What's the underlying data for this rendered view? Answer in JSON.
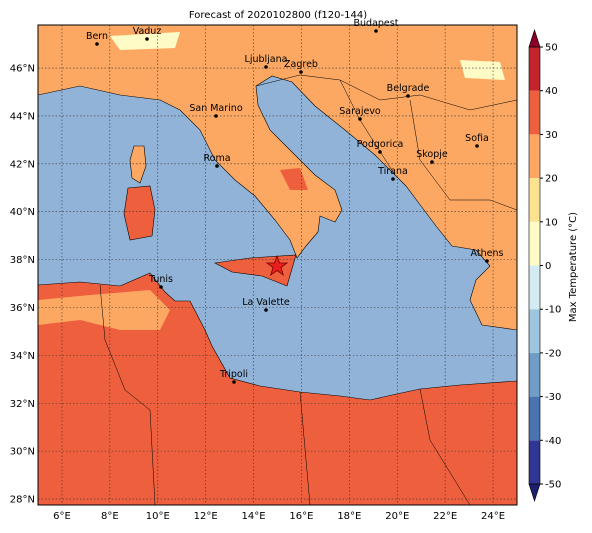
{
  "title": "Forecast of 2020102800 (f120-144)",
  "map": {
    "lon_range": [
      5,
      25
    ],
    "lat_range": [
      27.75,
      47.8
    ],
    "lon_ticks": [
      {
        "value": 6,
        "label": "6°E"
      },
      {
        "value": 8,
        "label": "8°E"
      },
      {
        "value": 10,
        "label": "10°E"
      },
      {
        "value": 12,
        "label": "12°E"
      },
      {
        "value": 14,
        "label": "14°E"
      },
      {
        "value": 16,
        "label": "16°E"
      },
      {
        "value": 18,
        "label": "18°E"
      },
      {
        "value": 20,
        "label": "20°E"
      },
      {
        "value": 22,
        "label": "22°E"
      },
      {
        "value": 24,
        "label": "24°E"
      }
    ],
    "lat_ticks": [
      {
        "value": 28,
        "label": "28°N"
      },
      {
        "value": 30,
        "label": "30°N"
      },
      {
        "value": 32,
        "label": "32°N"
      },
      {
        "value": 34,
        "label": "34°N"
      },
      {
        "value": 36,
        "label": "36°N"
      },
      {
        "value": 38,
        "label": "38°N"
      },
      {
        "value": 40,
        "label": "40°N"
      },
      {
        "value": 42,
        "label": "42°N"
      },
      {
        "value": 44,
        "label": "44°N"
      },
      {
        "value": 46,
        "label": "46°N"
      }
    ],
    "cities": [
      "Bern",
      "Vaduz",
      "Budapest",
      "Ljubljana",
      "Zagreb",
      "Belgrade",
      "San Marino",
      "Sarajevo",
      "Sofia",
      "Podgorica",
      "Skopje",
      "Roma",
      "Tirana",
      "Athens",
      "Tunis",
      "La Valette",
      "Tripoli"
    ]
  },
  "colorbar": {
    "label": "Max Temperature (°C)",
    "ticks": [
      -50,
      -40,
      -30,
      -20,
      -10,
      0,
      10,
      20,
      30,
      40,
      50
    ],
    "colors": [
      "#313695",
      "#4a74b0",
      "#6f9dc8",
      "#9dc6de",
      "#d3ecf3",
      "#fefbc6",
      "#fde290",
      "#fca862",
      "#ee5f3e",
      "#c2242a"
    ],
    "extend_colors": [
      "#1b1f6e",
      "#8a0026"
    ]
  }
}
